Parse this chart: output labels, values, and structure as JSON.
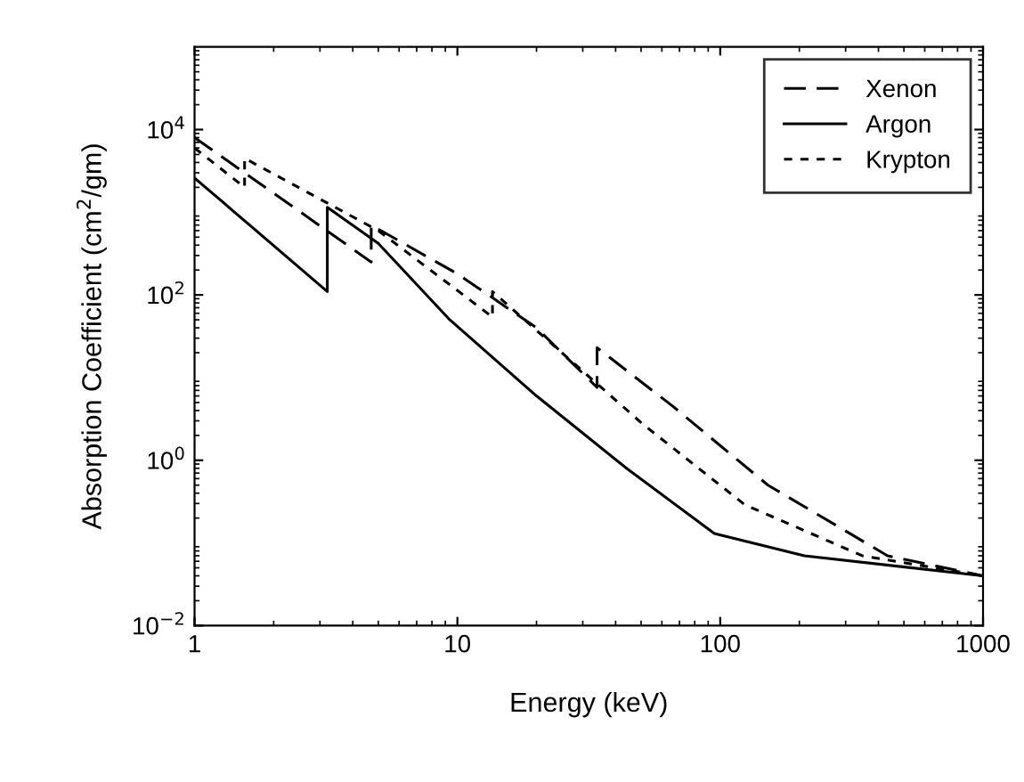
{
  "chart_data": {
    "type": "line",
    "xlabel": "Energy (keV)",
    "ylabel": "Absorption Coefficient (cm$^{2}$/gm)",
    "log": "xy",
    "xlim": [
      1,
      1000
    ],
    "ylim": [
      0.01,
      100000
    ],
    "xticks": [
      1,
      10,
      100,
      1000
    ],
    "yticks": [
      {
        "value": 0.01,
        "label": "10$^{−2}$"
      },
      {
        "value": 1,
        "label": "10$^{0}$"
      },
      {
        "value": 100,
        "label": "10$^{2}$"
      },
      {
        "value": 10000,
        "label": "10$^{4}$"
      }
    ],
    "grid": false,
    "legend": "top right",
    "marker": "none",
    "series": [
      {
        "name": "Xenon",
        "color": "#000000",
        "line_style": "dashed",
        "x": [
          1,
          2,
          4.7,
          4.7,
          10,
          20,
          34,
          34,
          66,
          152,
          433,
          1000
        ],
        "values": [
          8000,
          1700,
          250,
          700,
          180,
          40,
          7.6,
          23,
          4.5,
          0.5,
          0.07,
          0.04
        ]
      },
      {
        "name": "Argon",
        "color": "#000000",
        "line_style": "solid",
        "x": [
          1,
          3.2,
          3.2,
          5,
          9.3,
          20,
          44,
          95,
          209,
          1000
        ],
        "values": [
          2600,
          110,
          1150,
          420,
          51,
          6,
          0.8,
          0.13,
          0.07,
          0.04
        ]
      },
      {
        "name": "Krypton",
        "color": "#000000",
        "line_style": "dotted",
        "x": [
          1,
          1.55,
          1.55,
          5,
          13.6,
          13.6,
          51,
          124,
          347,
          1000
        ],
        "values": [
          6000,
          2000,
          4500,
          600,
          54,
          110,
          2.7,
          0.29,
          0.07,
          0.04
        ]
      }
    ]
  }
}
